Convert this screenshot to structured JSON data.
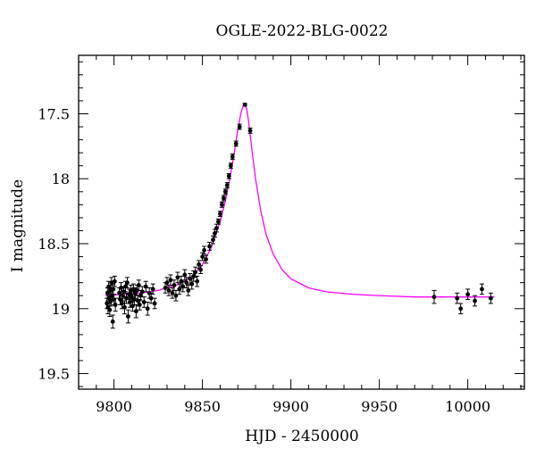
{
  "chart_data": {
    "type": "scatter",
    "title": "OGLE-2022-BLG-0022",
    "xlabel": "HJD - 2450000",
    "ylabel": "I magnitude",
    "xlim": [
      9780,
      10032
    ],
    "ylim": [
      19.62,
      17.05
    ],
    "y_inverted": true,
    "grid": false,
    "legend": "none",
    "xticks": [
      9800,
      9850,
      9900,
      9950,
      10000
    ],
    "xtick_labels": [
      "9800",
      "9850",
      "9900",
      "9950",
      "10000"
    ],
    "yticks": [
      17.5,
      18,
      18.5,
      19,
      19.5
    ],
    "ytick_labels": [
      "17.5",
      "18",
      "18.5",
      "19",
      "19.5"
    ],
    "colors": {
      "points": "#000000",
      "model": "#ff00ff",
      "axes": "#000000"
    },
    "series": [
      {
        "kind": "points_with_errorbars",
        "points": [
          [
            9796.0,
            18.96,
            0.04
          ],
          [
            9796.3,
            18.88,
            0.04
          ],
          [
            9796.6,
            18.99,
            0.05
          ],
          [
            9797.0,
            18.83,
            0.04
          ],
          [
            9797.3,
            18.92,
            0.04
          ],
          [
            9797.6,
            19.01,
            0.05
          ],
          [
            9798.0,
            18.86,
            0.04
          ],
          [
            9798.3,
            18.94,
            0.04
          ],
          [
            9798.6,
            18.8,
            0.04
          ],
          [
            9799.0,
            18.9,
            0.04
          ],
          [
            9799.3,
            19.1,
            0.05
          ],
          [
            9799.6,
            18.85,
            0.04
          ],
          [
            9800.0,
            18.93,
            0.04
          ],
          [
            9800.4,
            18.79,
            0.04
          ],
          [
            9800.8,
            18.97,
            0.05
          ],
          [
            9803.0,
            18.88,
            0.04
          ],
          [
            9803.5,
            18.93,
            0.04
          ],
          [
            9804.0,
            18.84,
            0.04
          ],
          [
            9804.5,
            18.96,
            0.04
          ],
          [
            9805.0,
            18.9,
            0.04
          ],
          [
            9805.5,
            18.87,
            0.04
          ],
          [
            9806.0,
            18.99,
            0.05
          ],
          [
            9806.5,
            18.83,
            0.04
          ],
          [
            9807.0,
            18.92,
            0.04
          ],
          [
            9807.5,
            18.8,
            0.04
          ],
          [
            9808.0,
            19.06,
            0.05
          ],
          [
            9808.5,
            18.89,
            0.04
          ],
          [
            9809.0,
            18.95,
            0.04
          ],
          [
            9809.5,
            18.86,
            0.04
          ],
          [
            9810.0,
            18.91,
            0.04
          ],
          [
            9810.5,
            18.98,
            0.04
          ],
          [
            9811.0,
            18.85,
            0.04
          ],
          [
            9811.5,
            18.93,
            0.04
          ],
          [
            9812.0,
            18.88,
            0.04
          ],
          [
            9812.5,
            19.02,
            0.05
          ],
          [
            9813.0,
            18.86,
            0.04
          ],
          [
            9813.5,
            18.94,
            0.04
          ],
          [
            9814.0,
            18.82,
            0.04
          ],
          [
            9814.5,
            18.97,
            0.04
          ],
          [
            9815.0,
            18.9,
            0.04
          ],
          [
            9816.0,
            18.87,
            0.04
          ],
          [
            9817.0,
            18.95,
            0.04
          ],
          [
            9818.0,
            18.83,
            0.04
          ],
          [
            9819.0,
            19.0,
            0.05
          ],
          [
            9820.0,
            18.88,
            0.04
          ],
          [
            9821.0,
            18.92,
            0.04
          ],
          [
            9822.0,
            18.85,
            0.04
          ],
          [
            9823.0,
            18.96,
            0.04
          ],
          [
            9829.0,
            18.84,
            0.04
          ],
          [
            9830.0,
            18.8,
            0.04
          ],
          [
            9831.0,
            18.86,
            0.04
          ],
          [
            9832.0,
            18.78,
            0.04
          ],
          [
            9833.0,
            18.88,
            0.04
          ],
          [
            9834.0,
            18.82,
            0.04
          ],
          [
            9835.0,
            18.9,
            0.04
          ],
          [
            9836.0,
            18.76,
            0.04
          ],
          [
            9837.0,
            18.85,
            0.04
          ],
          [
            9838.0,
            18.79,
            0.04
          ],
          [
            9839.0,
            18.83,
            0.04
          ],
          [
            9840.0,
            18.74,
            0.04
          ],
          [
            9841.0,
            18.8,
            0.04
          ],
          [
            9842.0,
            18.86,
            0.04
          ],
          [
            9843.0,
            18.77,
            0.04
          ],
          [
            9844.0,
            18.81,
            0.04
          ],
          [
            9845.0,
            18.75,
            0.04
          ],
          [
            9846.0,
            18.72,
            0.04
          ],
          [
            9847.0,
            18.79,
            0.04
          ],
          [
            9848.0,
            18.66,
            0.03
          ],
          [
            9849.0,
            18.7,
            0.03
          ],
          [
            9850.0,
            18.6,
            0.03
          ],
          [
            9851.0,
            18.55,
            0.03
          ],
          [
            9852.0,
            18.62,
            0.03
          ],
          [
            9854.0,
            18.52,
            0.03
          ],
          [
            9856.0,
            18.47,
            0.03
          ],
          [
            9857.0,
            18.42,
            0.03
          ],
          [
            9858.0,
            18.38,
            0.03
          ],
          [
            9859.0,
            18.33,
            0.02
          ],
          [
            9860.0,
            18.27,
            0.02
          ],
          [
            9861.0,
            18.2,
            0.02
          ],
          [
            9862.0,
            18.15,
            0.02
          ],
          [
            9863.0,
            18.1,
            0.02
          ],
          [
            9864.0,
            18.05,
            0.02
          ],
          [
            9865.0,
            17.98,
            0.02
          ],
          [
            9866.0,
            17.9,
            0.02
          ],
          [
            9867.0,
            17.83,
            0.02
          ],
          [
            9869.0,
            17.73,
            0.02
          ],
          [
            9871.0,
            17.6,
            0.02
          ],
          [
            9874.0,
            17.43,
            0.01
          ],
          [
            9877.0,
            17.63,
            0.02
          ],
          [
            9981.0,
            18.91,
            0.05
          ],
          [
            9994.0,
            18.92,
            0.04
          ],
          [
            9996.0,
            19.0,
            0.04
          ],
          [
            10000.0,
            18.89,
            0.04
          ],
          [
            10004.0,
            18.94,
            0.04
          ],
          [
            10008.0,
            18.85,
            0.04
          ],
          [
            10013.0,
            18.92,
            0.04
          ]
        ]
      },
      {
        "kind": "model_curve",
        "x": [
          9795,
          9805,
          9815,
          9825,
          9835,
          9840,
          9845,
          9850,
          9855,
          9860,
          9863,
          9866,
          9868,
          9870,
          9872,
          9873,
          9874,
          9875,
          9876,
          9878,
          9880,
          9883,
          9886,
          9890,
          9895,
          9900,
          9910,
          9920,
          9935,
          9950,
          9970,
          9990,
          10010,
          10015
        ],
        "y": [
          18.9,
          18.89,
          18.88,
          18.86,
          18.82,
          18.79,
          18.74,
          18.66,
          18.53,
          18.33,
          18.17,
          17.96,
          17.8,
          17.62,
          17.48,
          17.44,
          17.43,
          17.46,
          17.55,
          17.78,
          18.0,
          18.25,
          18.43,
          18.58,
          18.7,
          18.77,
          18.84,
          18.87,
          18.89,
          18.9,
          18.91,
          18.91,
          18.91,
          18.91
        ]
      }
    ]
  }
}
